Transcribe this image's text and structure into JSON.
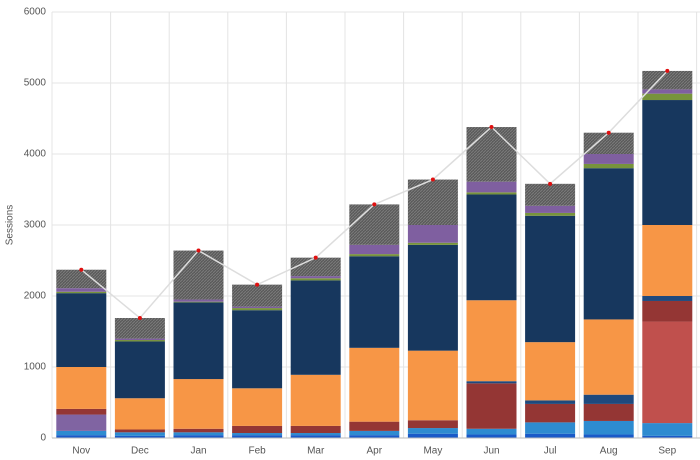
{
  "chart_data": {
    "type": "bar",
    "stacked": true,
    "ylabel": "Sessions",
    "categories": [
      "Nov",
      "Dec",
      "Jan",
      "Feb",
      "Mar",
      "Apr",
      "May",
      "Jun",
      "Jul",
      "Aug",
      "Sep"
    ],
    "ylim": [
      0,
      6000
    ],
    "yticks": [
      0,
      1000,
      2000,
      3000,
      4000,
      5000,
      6000
    ],
    "grid": true,
    "series": [
      {
        "color": "#1a5ac8",
        "values": [
          40,
          30,
          40,
          40,
          40,
          40,
          60,
          50,
          60,
          50,
          30
        ]
      },
      {
        "color": "#2e8bd0",
        "values": [
          60,
          50,
          40,
          30,
          30,
          60,
          80,
          80,
          160,
          190,
          180
        ]
      },
      {
        "color": "#8064a2",
        "values": [
          230,
          0,
          0,
          0,
          0,
          0,
          0,
          0,
          0,
          0,
          0
        ]
      },
      {
        "color": "#c0504d",
        "values": [
          0,
          0,
          0,
          0,
          0,
          0,
          0,
          0,
          0,
          0,
          1430
        ]
      },
      {
        "color": "#943634",
        "values": [
          80,
          40,
          50,
          100,
          100,
          130,
          110,
          640,
          260,
          240,
          290
        ]
      },
      {
        "color": "#1f497d",
        "values": [
          0,
          0,
          0,
          0,
          0,
          0,
          0,
          30,
          50,
          130,
          70
        ]
      },
      {
        "color": "#f79646",
        "values": [
          590,
          440,
          700,
          530,
          720,
          1040,
          980,
          1140,
          820,
          1060,
          1000
        ]
      },
      {
        "color": "#17375e",
        "values": [
          1040,
          800,
          1080,
          1100,
          1330,
          1290,
          1490,
          1490,
          1780,
          2130,
          1760
        ]
      },
      {
        "color": "#77933c",
        "values": [
          20,
          20,
          10,
          30,
          30,
          30,
          30,
          30,
          40,
          60,
          90
        ]
      },
      {
        "color": "#7f5fa0",
        "values": [
          50,
          20,
          30,
          20,
          30,
          130,
          250,
          150,
          100,
          140,
          60
        ]
      },
      {
        "color": "#636363",
        "pattern": "hatch",
        "values": [
          260,
          290,
          690,
          310,
          260,
          570,
          640,
          770,
          310,
          300,
          260
        ]
      },
      {
        "type": "line",
        "color": "#dddddd",
        "marker_color": "#e01010",
        "values": [
          2370,
          1690,
          2640,
          2160,
          2540,
          3290,
          3640,
          4380,
          3580,
          4300,
          5170
        ]
      }
    ]
  }
}
